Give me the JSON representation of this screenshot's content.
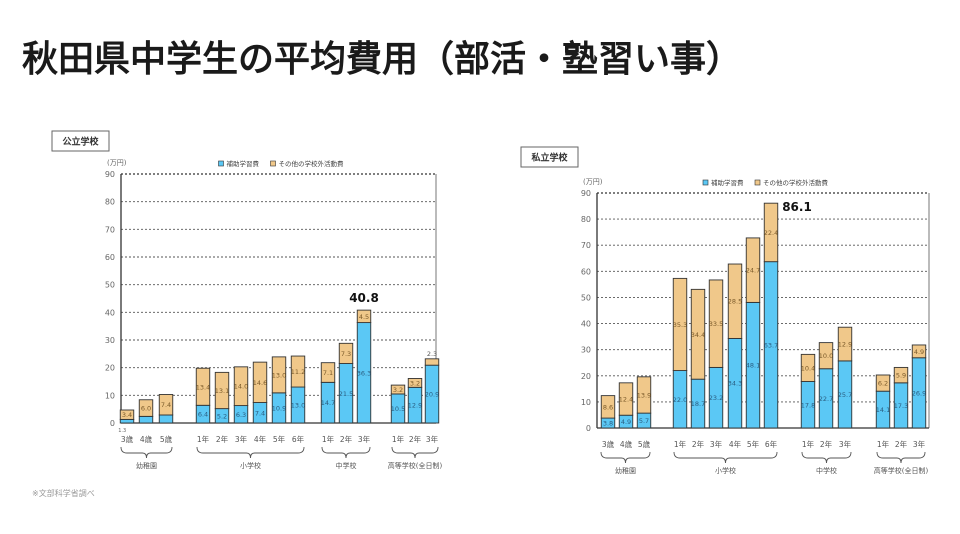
{
  "page": {
    "title": "秋田県中学生の平均費用（部活・塾習い事）",
    "note": "※文部科学省調べ"
  },
  "colors": {
    "tutoring": "#5bc8f5",
    "other": "#f0c88a",
    "bar_edge": "#333333",
    "grid": "#555555"
  },
  "chart_data": [
    {
      "type": "bar",
      "stacked": true,
      "panel_label": "公立学校",
      "ylabel": "(万円)",
      "ylim": [
        0,
        90
      ],
      "yticks": [
        0,
        10,
        20,
        30,
        40,
        50,
        60,
        70,
        80,
        90
      ],
      "grid": true,
      "legend_position": "top-center",
      "legend": [
        "補助学習費",
        "その他の学校外活動費"
      ],
      "groups": [
        {
          "name": "幼稚園",
          "categories": [
            "3歳",
            "4歳",
            "5歳"
          ]
        },
        {
          "name": "小学校",
          "categories": [
            "1年",
            "2年",
            "3年",
            "4年",
            "5年",
            "6年"
          ]
        },
        {
          "name": "中学校",
          "categories": [
            "1年",
            "2年",
            "3年"
          ]
        },
        {
          "name": "高等学校(全日制)",
          "categories": [
            "1年",
            "2年",
            "3年"
          ]
        }
      ],
      "series": [
        {
          "name": "補助学習費",
          "values": [
            1.3,
            2.4,
            2.9,
            6.4,
            5.2,
            6.3,
            7.4,
            10.9,
            13.0,
            14.7,
            21.5,
            36.3,
            10.5,
            12.9,
            20.9
          ],
          "labels": [
            "1.3",
            "",
            "",
            "6.4",
            "5.2",
            "6.3",
            "7.4",
            "10.9",
            "13.0",
            "14.7",
            "21.5",
            "36.3",
            "10.5",
            "12.9",
            "20.9"
          ]
        },
        {
          "name": "その他の学校外活動費",
          "values": [
            3.4,
            6.0,
            7.4,
            13.4,
            13.1,
            14.0,
            14.6,
            13.0,
            11.2,
            7.1,
            7.3,
            4.5,
            3.2,
            3.2,
            2.3
          ],
          "labels": [
            "3.4",
            "6.0",
            "7.4",
            "13.4",
            "13.1",
            "14.0",
            "14.6",
            "13.0",
            "11.2",
            "7.1",
            "7.3",
            "4.5",
            "3.2",
            "3.2",
            "2.3"
          ]
        }
      ],
      "annotation": {
        "text": "40.8",
        "index": 11
      }
    },
    {
      "type": "bar",
      "stacked": true,
      "panel_label": "私立学校",
      "ylabel": "(万円)",
      "ylim": [
        0,
        90
      ],
      "yticks": [
        0,
        10,
        20,
        30,
        40,
        50,
        60,
        70,
        80,
        90
      ],
      "grid": true,
      "legend_position": "top-center",
      "legend": [
        "補助学習費",
        "その他の学校外活動費"
      ],
      "groups": [
        {
          "name": "幼稚園",
          "categories": [
            "3歳",
            "4歳",
            "5歳"
          ]
        },
        {
          "name": "小学校",
          "categories": [
            "1年",
            "2年",
            "3年",
            "4年",
            "5年",
            "6年"
          ]
        },
        {
          "name": "中学校",
          "categories": [
            "1年",
            "2年",
            "3年"
          ]
        },
        {
          "name": "高等学校(全日制)",
          "categories": [
            "1年",
            "2年",
            "3年"
          ]
        }
      ],
      "series": [
        {
          "name": "補助学習費",
          "values": [
            3.8,
            4.9,
            5.7,
            22.0,
            18.7,
            23.2,
            34.3,
            48.1,
            63.7,
            17.8,
            22.7,
            25.7,
            14.1,
            17.3,
            26.9
          ],
          "labels": [
            "3.8",
            "4.9",
            "5.7",
            "22.0",
            "18.7",
            "23.2",
            "34.3",
            "48.1",
            "63.7",
            "17.8",
            "22.7",
            "25.7",
            "14.1",
            "17.3",
            "26.9"
          ]
        },
        {
          "name": "その他の学校外活動費",
          "values": [
            8.6,
            12.4,
            13.9,
            35.3,
            34.4,
            33.5,
            28.5,
            24.7,
            22.4,
            10.4,
            10.0,
            12.9,
            6.2,
            5.9,
            4.9
          ],
          "labels": [
            "8.6",
            "12.4",
            "13.9",
            "35.3",
            "34.4",
            "33.5",
            "28.5",
            "24.7",
            "22.4",
            "10.4",
            "10.0",
            "12.9",
            "6.2",
            "5.9",
            "4.9"
          ]
        }
      ],
      "annotation": {
        "text": "86.1",
        "index": 8
      }
    }
  ]
}
